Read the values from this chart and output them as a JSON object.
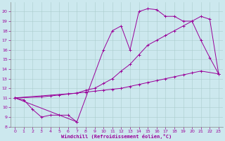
{
  "xlabel": "Windchill (Refroidissement éolien,°C)",
  "bg_color": "#cce8ee",
  "line_color": "#990099",
  "xlim": [
    -0.5,
    23.5
  ],
  "ylim": [
    8,
    21
  ],
  "xticks": [
    0,
    1,
    2,
    3,
    4,
    5,
    6,
    7,
    8,
    9,
    10,
    11,
    12,
    13,
    14,
    15,
    16,
    17,
    18,
    19,
    20,
    21,
    22,
    23
  ],
  "yticks": [
    8,
    9,
    10,
    11,
    12,
    13,
    14,
    15,
    16,
    17,
    18,
    19,
    20
  ],
  "series1_x": [
    0,
    1,
    2,
    3,
    4,
    5,
    6,
    7
  ],
  "series1_y": [
    11,
    10.8,
    9.8,
    9.0,
    9.2,
    9.2,
    9.2,
    8.5
  ],
  "series2_x": [
    0,
    3,
    4,
    5,
    6,
    7,
    8,
    9,
    10,
    11,
    12,
    13,
    14,
    15,
    16,
    17,
    18,
    19,
    20,
    21,
    23
  ],
  "series2_y": [
    11,
    11.1,
    11.2,
    11.3,
    11.4,
    11.5,
    11.6,
    11.7,
    11.8,
    11.9,
    12.0,
    12.2,
    12.4,
    12.6,
    12.8,
    13.0,
    13.2,
    13.4,
    13.6,
    13.8,
    13.5
  ],
  "series3_x": [
    0,
    7,
    8,
    9,
    10,
    11,
    12,
    13,
    14,
    15,
    16,
    17,
    18,
    19,
    20,
    21,
    22,
    23
  ],
  "series3_y": [
    11,
    11.5,
    11.8,
    12.0,
    12.5,
    13.0,
    13.8,
    14.5,
    15.5,
    16.5,
    17.0,
    17.5,
    18.0,
    18.5,
    19.0,
    19.5,
    19.2,
    13.5
  ],
  "series4_x": [
    0,
    7,
    10,
    11,
    12,
    13,
    14,
    15,
    16,
    17,
    18,
    19,
    20,
    21,
    22,
    23
  ],
  "series4_y": [
    11,
    8.5,
    16.0,
    18.0,
    18.5,
    16.0,
    20.0,
    20.3,
    20.2,
    19.5,
    19.5,
    19.0,
    19.0,
    17.0,
    15.2,
    13.5
  ]
}
